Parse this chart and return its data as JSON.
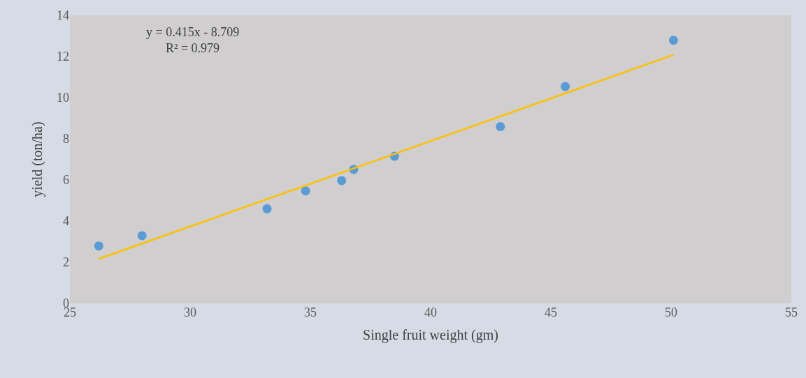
{
  "chart_data": {
    "type": "scatter",
    "xlabel": "Single fruit weight (gm)",
    "ylabel": "yield (ton/ha)",
    "xlim": [
      25,
      55
    ],
    "xticks": [
      25,
      30,
      35,
      40,
      45,
      50,
      55
    ],
    "ylim": [
      0,
      14
    ],
    "yticks": [
      0,
      2,
      4,
      6,
      8,
      10,
      12,
      14
    ],
    "grid": false,
    "legend": false,
    "marker": "circle",
    "annotations": [
      "y = 0.415x - 8.709\nR² = 0.979"
    ],
    "series": [
      {
        "color": "#5b9bd5",
        "x": [
          26.2,
          28.0,
          33.2,
          34.8,
          36.3,
          36.8,
          38.5,
          42.9,
          45.6,
          50.1
        ],
        "values": [
          2.79,
          3.29,
          4.6,
          5.47,
          5.97,
          6.51,
          7.15,
          8.59,
          10.54,
          12.79
        ]
      },
      {
        "type": "line",
        "color": "#ffc000",
        "marker": "none",
        "x": [
          26.2,
          50.1
        ],
        "values": [
          2.16,
          12.08
        ]
      }
    ]
  }
}
